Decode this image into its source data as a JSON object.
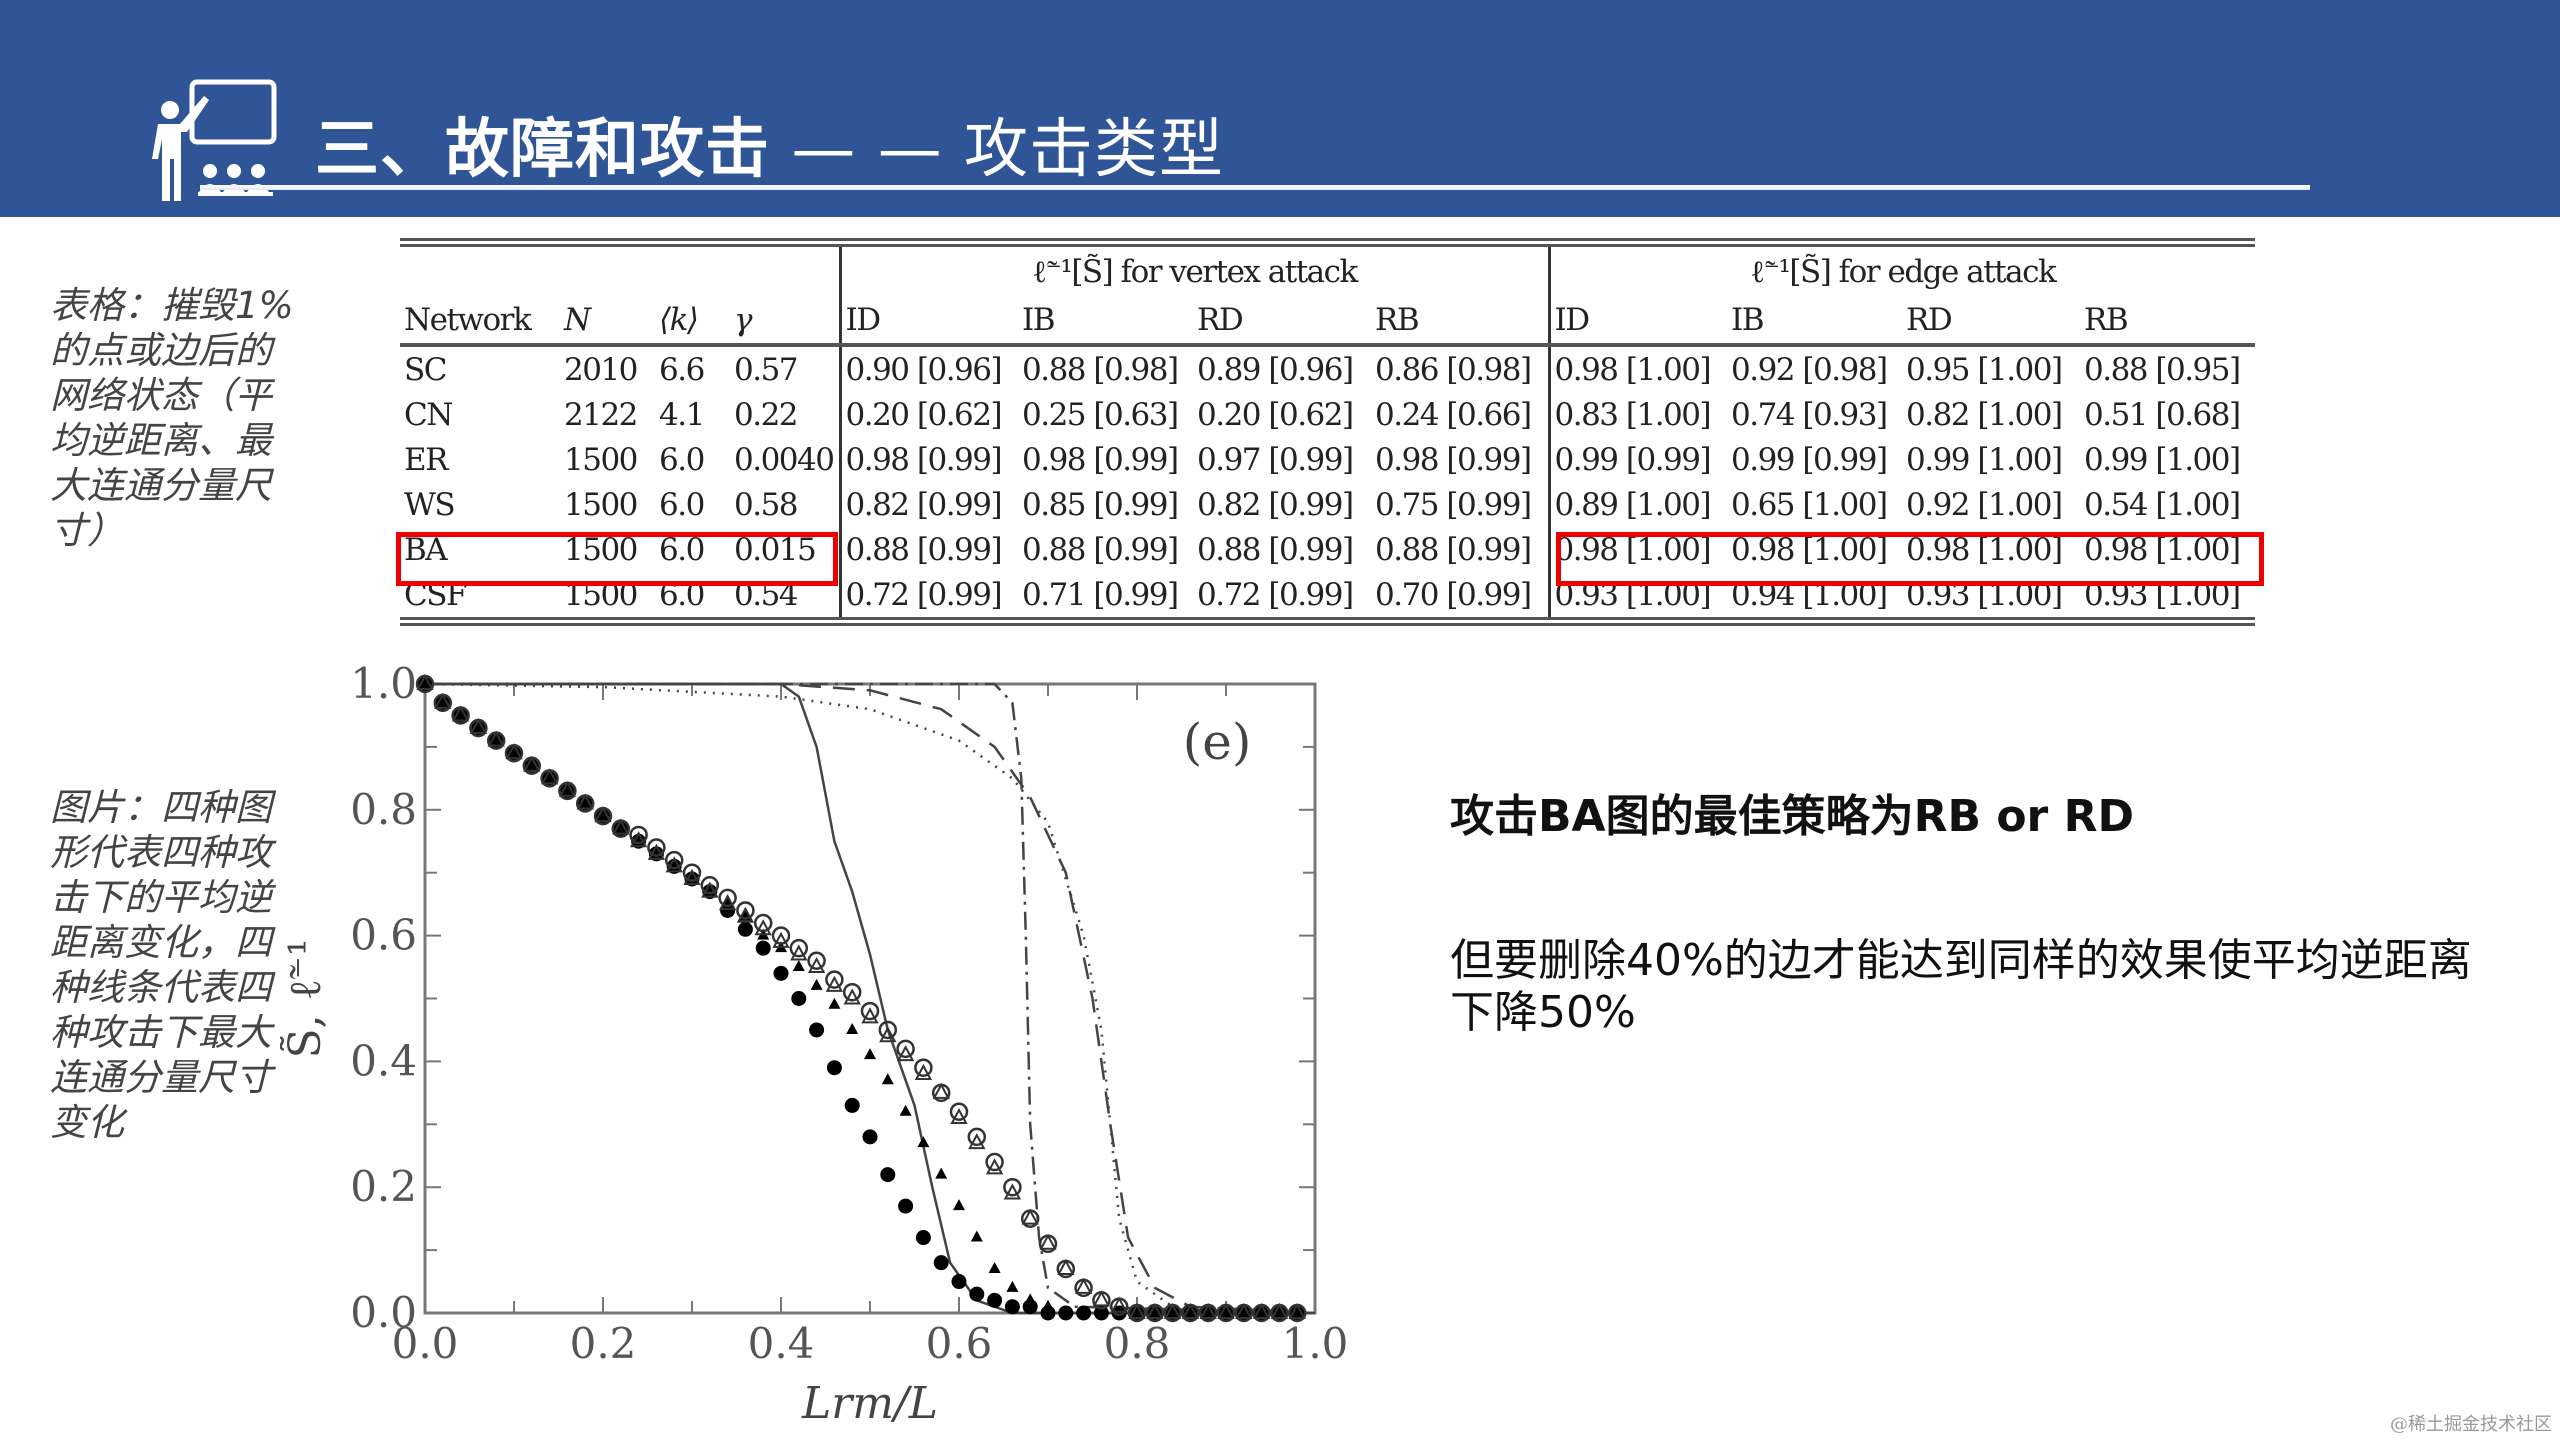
{
  "header": {
    "title_bold": "三、故障和攻击",
    "title_separator": " — — ",
    "title_light": "攻击类型",
    "icon": "teacher-presentation-icon",
    "background_color": "#2f5597"
  },
  "captions": {
    "table": "表格：摧毁1%的点或边后的网络状态（平均逆距离、最大连通分量尺寸）",
    "figure": "图片：四种图形代表四种攻击下的平均逆距离变化，四种线条代表四种攻击下最大连通分量尺寸变化"
  },
  "table": {
    "group_headers": {
      "vertex": "ℓ̃⁻¹[S̃] for vertex attack",
      "edge": "ℓ̃⁻¹[S̃] for edge attack"
    },
    "columns": [
      "Network",
      "N",
      "⟨k⟩",
      "γ",
      "ID",
      "IB",
      "RD",
      "RB",
      "ID",
      "IB",
      "RD",
      "RB"
    ],
    "rows": [
      [
        "SC",
        "2010",
        "6.6",
        "0.57",
        "0.90 [0.96]",
        "0.88 [0.98]",
        "0.89 [0.96]",
        "0.86 [0.98]",
        "0.98 [1.00]",
        "0.92 [0.98]",
        "0.95 [1.00]",
        "0.88 [0.95]"
      ],
      [
        "CN",
        "2122",
        "4.1",
        "0.22",
        "0.20 [0.62]",
        "0.25 [0.63]",
        "0.20 [0.62]",
        "0.24 [0.66]",
        "0.83 [1.00]",
        "0.74 [0.93]",
        "0.82 [1.00]",
        "0.51 [0.68]"
      ],
      [
        "ER",
        "1500",
        "6.0",
        "0.0040",
        "0.98 [0.99]",
        "0.98 [0.99]",
        "0.97 [0.99]",
        "0.98 [0.99]",
        "0.99 [0.99]",
        "0.99 [0.99]",
        "0.99 [1.00]",
        "0.99 [1.00]"
      ],
      [
        "WS",
        "1500",
        "6.0",
        "0.58",
        "0.82 [0.99]",
        "0.85 [0.99]",
        "0.82 [0.99]",
        "0.75 [0.99]",
        "0.89 [1.00]",
        "0.65 [1.00]",
        "0.92 [1.00]",
        "0.54 [1.00]"
      ],
      [
        "BA",
        "1500",
        "6.0",
        "0.015",
        "0.88 [0.99]",
        "0.88 [0.99]",
        "0.88 [0.99]",
        "0.88 [0.99]",
        "0.98 [1.00]",
        "0.98 [1.00]",
        "0.98 [1.00]",
        "0.98 [1.00]"
      ],
      [
        "CSF",
        "1500",
        "6.0",
        "0.54",
        "0.72 [0.99]",
        "0.71 [0.99]",
        "0.72 [0.99]",
        "0.70 [0.99]",
        "0.93 [1.00]",
        "0.94 [1.00]",
        "0.93 [1.00]",
        "0.93 [1.00]"
      ]
    ],
    "highlight_color": "#ee0000",
    "highlights": [
      "BA row: Network..γ",
      "BA row: edge attack ID..RB"
    ]
  },
  "chart_data": {
    "type": "scatter",
    "title": "",
    "panel_label": "(e)",
    "xlabel": "L_rm/L",
    "ylabel": "S̃, ℓ̃⁻¹",
    "xlim": [
      0.0,
      1.0
    ],
    "ylim": [
      0.0,
      1.0
    ],
    "xticks": [
      "0.0",
      "0.2",
      "0.4",
      "0.6",
      "0.8",
      "1.0"
    ],
    "yticks": [
      "0.0",
      "0.2",
      "0.4",
      "0.6",
      "0.8",
      "1.0"
    ],
    "grid": false,
    "x": [
      0.0,
      0.02,
      0.04,
      0.06,
      0.08,
      0.1,
      0.12,
      0.14,
      0.16,
      0.18,
      0.2,
      0.22,
      0.24,
      0.26,
      0.28,
      0.3,
      0.32,
      0.34,
      0.36,
      0.38,
      0.4,
      0.42,
      0.44,
      0.46,
      0.48,
      0.5,
      0.52,
      0.54,
      0.56,
      0.58,
      0.6,
      0.62,
      0.64,
      0.66,
      0.68,
      0.7,
      0.72,
      0.74,
      0.76,
      0.78,
      0.8,
      0.82,
      0.84,
      0.86,
      0.88,
      0.9,
      0.92,
      0.94,
      0.96,
      0.98
    ],
    "series": [
      {
        "name": "filled circles (inverse distance, attack 1)",
        "marker": "filled-circle",
        "values": [
          1.0,
          0.97,
          0.95,
          0.93,
          0.91,
          0.89,
          0.87,
          0.85,
          0.83,
          0.81,
          0.79,
          0.77,
          0.75,
          0.73,
          0.71,
          0.69,
          0.67,
          0.64,
          0.61,
          0.58,
          0.54,
          0.5,
          0.45,
          0.39,
          0.33,
          0.28,
          0.22,
          0.17,
          0.12,
          0.08,
          0.05,
          0.03,
          0.02,
          0.01,
          0.01,
          0.0,
          0.0,
          0.0,
          0.0,
          0.0,
          0.0,
          0.0,
          0.0,
          0.0,
          0.0,
          0.0,
          0.0,
          0.0,
          0.0,
          0.0
        ]
      },
      {
        "name": "filled triangles (inverse distance, attack 2)",
        "marker": "filled-triangle",
        "values": [
          1.0,
          0.97,
          0.95,
          0.93,
          0.91,
          0.89,
          0.87,
          0.85,
          0.83,
          0.81,
          0.79,
          0.77,
          0.75,
          0.73,
          0.71,
          0.69,
          0.67,
          0.65,
          0.63,
          0.6,
          0.58,
          0.55,
          0.52,
          0.49,
          0.45,
          0.41,
          0.37,
          0.32,
          0.27,
          0.22,
          0.17,
          0.12,
          0.07,
          0.04,
          0.02,
          0.01,
          0.0,
          0.0,
          0.0,
          0.0,
          0.0,
          0.0,
          0.0,
          0.0,
          0.0,
          0.0,
          0.0,
          0.0,
          0.0,
          0.0
        ]
      },
      {
        "name": "open triangles (inverse distance, attack 3)",
        "marker": "open-triangle",
        "values": [
          1.0,
          0.97,
          0.95,
          0.93,
          0.91,
          0.89,
          0.87,
          0.85,
          0.83,
          0.81,
          0.79,
          0.77,
          0.75,
          0.73,
          0.71,
          0.69,
          0.67,
          0.65,
          0.63,
          0.61,
          0.59,
          0.57,
          0.55,
          0.52,
          0.5,
          0.47,
          0.44,
          0.41,
          0.38,
          0.35,
          0.31,
          0.27,
          0.23,
          0.19,
          0.15,
          0.11,
          0.07,
          0.04,
          0.02,
          0.01,
          0.0,
          0.0,
          0.0,
          0.0,
          0.0,
          0.0,
          0.0,
          0.0,
          0.0,
          0.0
        ]
      },
      {
        "name": "open circles (inverse distance, attack 4)",
        "marker": "open-circle",
        "values": [
          1.0,
          0.97,
          0.95,
          0.93,
          0.91,
          0.89,
          0.87,
          0.85,
          0.83,
          0.81,
          0.79,
          0.77,
          0.76,
          0.74,
          0.72,
          0.7,
          0.68,
          0.66,
          0.64,
          0.62,
          0.6,
          0.58,
          0.56,
          0.53,
          0.51,
          0.48,
          0.45,
          0.42,
          0.39,
          0.35,
          0.32,
          0.28,
          0.24,
          0.2,
          0.15,
          0.11,
          0.07,
          0.04,
          0.02,
          0.01,
          0.0,
          0.0,
          0.0,
          0.0,
          0.0,
          0.0,
          0.0,
          0.0,
          0.0,
          0.0
        ]
      },
      {
        "name": "solid line (largest component, attack 1)",
        "line": "solid",
        "points": [
          [
            0.0,
            1.0
          ],
          [
            0.4,
            1.0
          ],
          [
            0.42,
            0.98
          ],
          [
            0.44,
            0.9
          ],
          [
            0.46,
            0.75
          ],
          [
            0.48,
            0.67
          ],
          [
            0.5,
            0.57
          ],
          [
            0.52,
            0.45
          ],
          [
            0.55,
            0.33
          ],
          [
            0.57,
            0.2
          ],
          [
            0.59,
            0.08
          ],
          [
            0.62,
            0.02
          ],
          [
            0.66,
            0.0
          ],
          [
            1.0,
            0.0
          ]
        ]
      },
      {
        "name": "dotted line (largest component, attack 2)",
        "line": "dotted",
        "points": [
          [
            0.0,
            1.0
          ],
          [
            0.2,
            0.995
          ],
          [
            0.4,
            0.98
          ],
          [
            0.5,
            0.96
          ],
          [
            0.6,
            0.91
          ],
          [
            0.66,
            0.85
          ],
          [
            0.7,
            0.78
          ],
          [
            0.74,
            0.6
          ],
          [
            0.76,
            0.45
          ],
          [
            0.77,
            0.3
          ],
          [
            0.78,
            0.15
          ],
          [
            0.8,
            0.05
          ],
          [
            0.84,
            0.01
          ],
          [
            1.0,
            0.0
          ]
        ]
      },
      {
        "name": "dashed line (largest component, attack 3)",
        "line": "dashed",
        "points": [
          [
            0.0,
            1.0
          ],
          [
            0.4,
            1.0
          ],
          [
            0.5,
            0.99
          ],
          [
            0.58,
            0.96
          ],
          [
            0.64,
            0.9
          ],
          [
            0.68,
            0.82
          ],
          [
            0.72,
            0.7
          ],
          [
            0.75,
            0.5
          ],
          [
            0.77,
            0.3
          ],
          [
            0.79,
            0.12
          ],
          [
            0.82,
            0.04
          ],
          [
            0.86,
            0.01
          ],
          [
            1.0,
            0.0
          ]
        ]
      },
      {
        "name": "dash-dot line (largest component, attack 4)",
        "line": "dash-dot",
        "points": [
          [
            0.0,
            1.0
          ],
          [
            0.64,
            1.0
          ],
          [
            0.66,
            0.97
          ],
          [
            0.67,
            0.85
          ],
          [
            0.675,
            0.6
          ],
          [
            0.68,
            0.3
          ],
          [
            0.69,
            0.12
          ],
          [
            0.7,
            0.04
          ],
          [
            0.73,
            0.01
          ],
          [
            1.0,
            0.0
          ]
        ]
      }
    ]
  },
  "notes": {
    "title": "攻击BA图的最佳策略为RB or RD",
    "body": "但要删除40%的边才能达到同样的效果使平均逆距离下降50%"
  },
  "watermark": "@稀土掘金技术社区"
}
